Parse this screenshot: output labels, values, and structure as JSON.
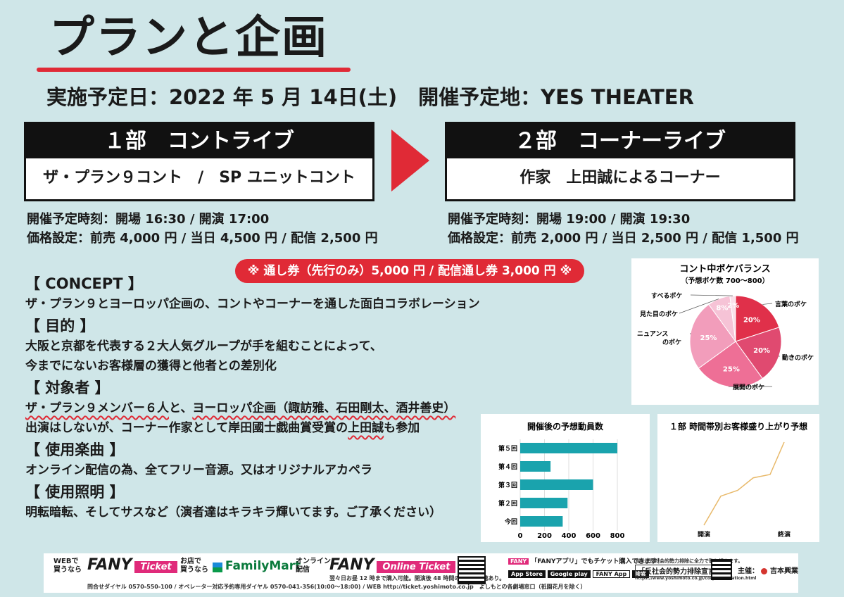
{
  "header": {
    "title": "プランと企画",
    "date_label": "実施予定日：2022 年 5 月 14日(土)",
    "venue_label": "開催予定地：YES THEATER"
  },
  "part1": {
    "heading": "１部　コントライブ",
    "subtitle": "ザ・プラン９コント　/　SP ユニットコント",
    "time": "開催予定時刻：開場 16:30 / 開演 17:00",
    "price": "価格設定：前売 4,000 円 / 当日 4,500 円 / 配信 2,500 円"
  },
  "part2": {
    "heading": "２部　コーナーライブ",
    "subtitle": "作家　上田誠によるコーナー",
    "time": "開催予定時刻：開場 19:00 / 開演 19:30",
    "price": "価格設定：前売 2,000 円 / 当日 2,500 円 / 配信 1,500 円"
  },
  "pass": "※ 通し券（先行のみ）5,000 円 / 配信通し券 3,000 円 ※",
  "sections": {
    "concept_head": "【 CONCEPT 】",
    "concept_text": "ザ・プラン９とヨーロッパ企画の、コントやコーナーを通した面白コラボレーション",
    "purpose_head": "【 目的 】",
    "purpose_line1": "大阪と京都を代表する２大人気グループが手を組むことによって、",
    "purpose_line2": "今までにないお客様層の獲得と他者との差別化",
    "target_head": "【 対象者 】",
    "target_line1a": "ザ・プラン９メンバー６人",
    "target_line1b": "と、",
    "target_line1c": "ヨーロッパ企画（諏訪雅、石田剛太、酒井善史）",
    "target_line2a": "出演はしないが、コーナー作家として岸田國士戯曲賞受賞の",
    "target_line2b": "上田誠",
    "target_line2c": "も参加",
    "music_head": "【 使用楽曲 】",
    "music_text": "オンライン配信の為、全てフリー音源。又はオリジナルアカペラ",
    "light_head": "【 使用照明 】",
    "light_text": "明転暗転、そしてサスなど（演者達はキラキラ輝いてます。ご了承ください）"
  },
  "chart_data": [
    {
      "type": "pie",
      "title": "コント中ボケバランス",
      "subtitle": "（予想ボケ数 700〜800）",
      "series": [
        {
          "label": "言葉のボケ",
          "value": 20,
          "display": "20%",
          "color": "#e0304a"
        },
        {
          "label": "動きのボケ",
          "value": 20,
          "display": "20%",
          "color": "#e04a70"
        },
        {
          "label": "展開のボケ",
          "value": 25,
          "display": "25%",
          "color": "#ee6f96"
        },
        {
          "label": "ニュアンスのボケ",
          "value": 25,
          "display": "25%",
          "color": "#f29dbb"
        },
        {
          "label": "見た目のボケ",
          "value": 8,
          "display": "8%",
          "color": "#f6c3d6"
        },
        {
          "label": "すべるボケ",
          "value": 2,
          "display": "2%",
          "color": "#fae0ea"
        }
      ]
    },
    {
      "type": "bar",
      "orientation": "horizontal",
      "title": "開催後の予想動員数",
      "categories": [
        "第５回",
        "第４回",
        "第３回",
        "第２回",
        "今回"
      ],
      "values": [
        800,
        250,
        600,
        390,
        350
      ],
      "xlim": [
        0,
        800
      ],
      "xticks": [
        "0",
        "200",
        "400",
        "600",
        "800"
      ],
      "color": "#1aa3ad"
    },
    {
      "type": "line",
      "title": "１部 時間帯別お客様盛り上がり予想",
      "x_labels": [
        "開演",
        "終演"
      ],
      "y": [
        0,
        35,
        42,
        57,
        61,
        100
      ],
      "color": "#e8b96a"
    }
  ],
  "footer": {
    "web_label": "WEBで\n買うなら",
    "fany": "FANY",
    "ticket": "Ticket",
    "store_label": "お店で\n買うなら",
    "familymart": "FamilyMart",
    "online_label": "オンライン\n配信",
    "online_ticket": "Online Ticket",
    "app_note": "「FANYアプリ」でもチケット購入できます！",
    "app_store": "App Store",
    "google_play": "Google play",
    "fany_app": "FANY App",
    "search": "検索",
    "antisocial_note": "当社は反社会的勢力排除に全力で取り組みます。",
    "antisocial": "「反社会的勢力排除宣言」",
    "antisocial_url": "https://www.yoshimoto.co.jp/corp/declaration.html",
    "sponsor": "主催：",
    "sponsor_name": "吉本興業",
    "contact": "問合せダイヤル 0570-550-100 / オペレーター対応予約専用ダイヤル 0570-041-356(10:00〜18:00) / WEB http://ticket.yoshimoto.co.jp　よしもとの各劇場窓口（祇園花月を除く）",
    "sale_note": "翌々日お昼 12 時まで購入可能。開演後 48 時間の見逃し視聴あり。"
  }
}
